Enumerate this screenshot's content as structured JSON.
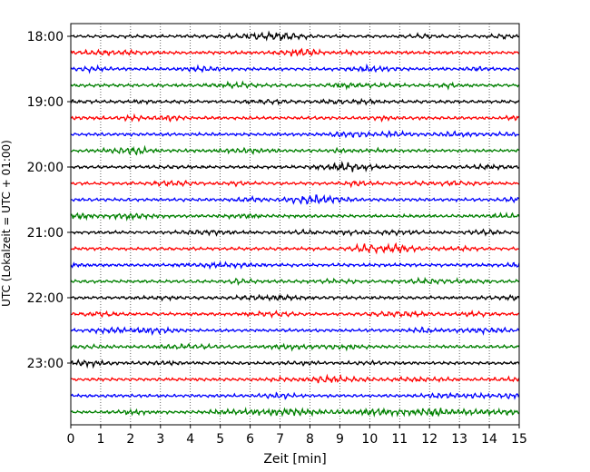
{
  "chart_data": {
    "type": "line",
    "title": "",
    "xlabel": "Zeit  [min]",
    "ylabel": "UTC (Lokalzeit = UTC + 01:00)",
    "xlim": [
      0,
      15
    ],
    "x_ticks": [
      0,
      1,
      2,
      3,
      4,
      5,
      6,
      7,
      8,
      9,
      10,
      11,
      12,
      13,
      14,
      15
    ],
    "x_tick_labels": [
      "0",
      "1",
      "2",
      "3",
      "4",
      "5",
      "6",
      "7",
      "8",
      "9",
      "10",
      "11",
      "12",
      "13",
      "14",
      "15"
    ],
    "y_tick_labels": [
      "18:00",
      "19:00",
      "20:00",
      "21:00",
      "22:00",
      "23:00"
    ],
    "grid": "vertical dotted",
    "trace_interval_min": 15,
    "colors": [
      "#000000",
      "#ff0000",
      "#0000ff",
      "#008000"
    ],
    "traces": [
      {
        "start": "18:00",
        "color": "#000000"
      },
      {
        "start": "18:15",
        "color": "#ff0000"
      },
      {
        "start": "18:30",
        "color": "#0000ff"
      },
      {
        "start": "18:45",
        "color": "#008000"
      },
      {
        "start": "19:00",
        "color": "#000000"
      },
      {
        "start": "19:15",
        "color": "#ff0000"
      },
      {
        "start": "19:30",
        "color": "#0000ff"
      },
      {
        "start": "19:45",
        "color": "#008000"
      },
      {
        "start": "20:00",
        "color": "#000000"
      },
      {
        "start": "20:15",
        "color": "#ff0000"
      },
      {
        "start": "20:30",
        "color": "#0000ff"
      },
      {
        "start": "20:45",
        "color": "#008000"
      },
      {
        "start": "21:00",
        "color": "#000000"
      },
      {
        "start": "21:15",
        "color": "#ff0000"
      },
      {
        "start": "21:30",
        "color": "#0000ff"
      },
      {
        "start": "21:45",
        "color": "#008000"
      },
      {
        "start": "22:00",
        "color": "#000000"
      },
      {
        "start": "22:15",
        "color": "#ff0000"
      },
      {
        "start": "22:30",
        "color": "#0000ff"
      },
      {
        "start": "22:45",
        "color": "#008000"
      },
      {
        "start": "23:00",
        "color": "#000000"
      },
      {
        "start": "23:15",
        "color": "#ff0000"
      },
      {
        "start": "23:30",
        "color": "#0000ff"
      },
      {
        "start": "23:45",
        "color": "#008000"
      }
    ]
  }
}
